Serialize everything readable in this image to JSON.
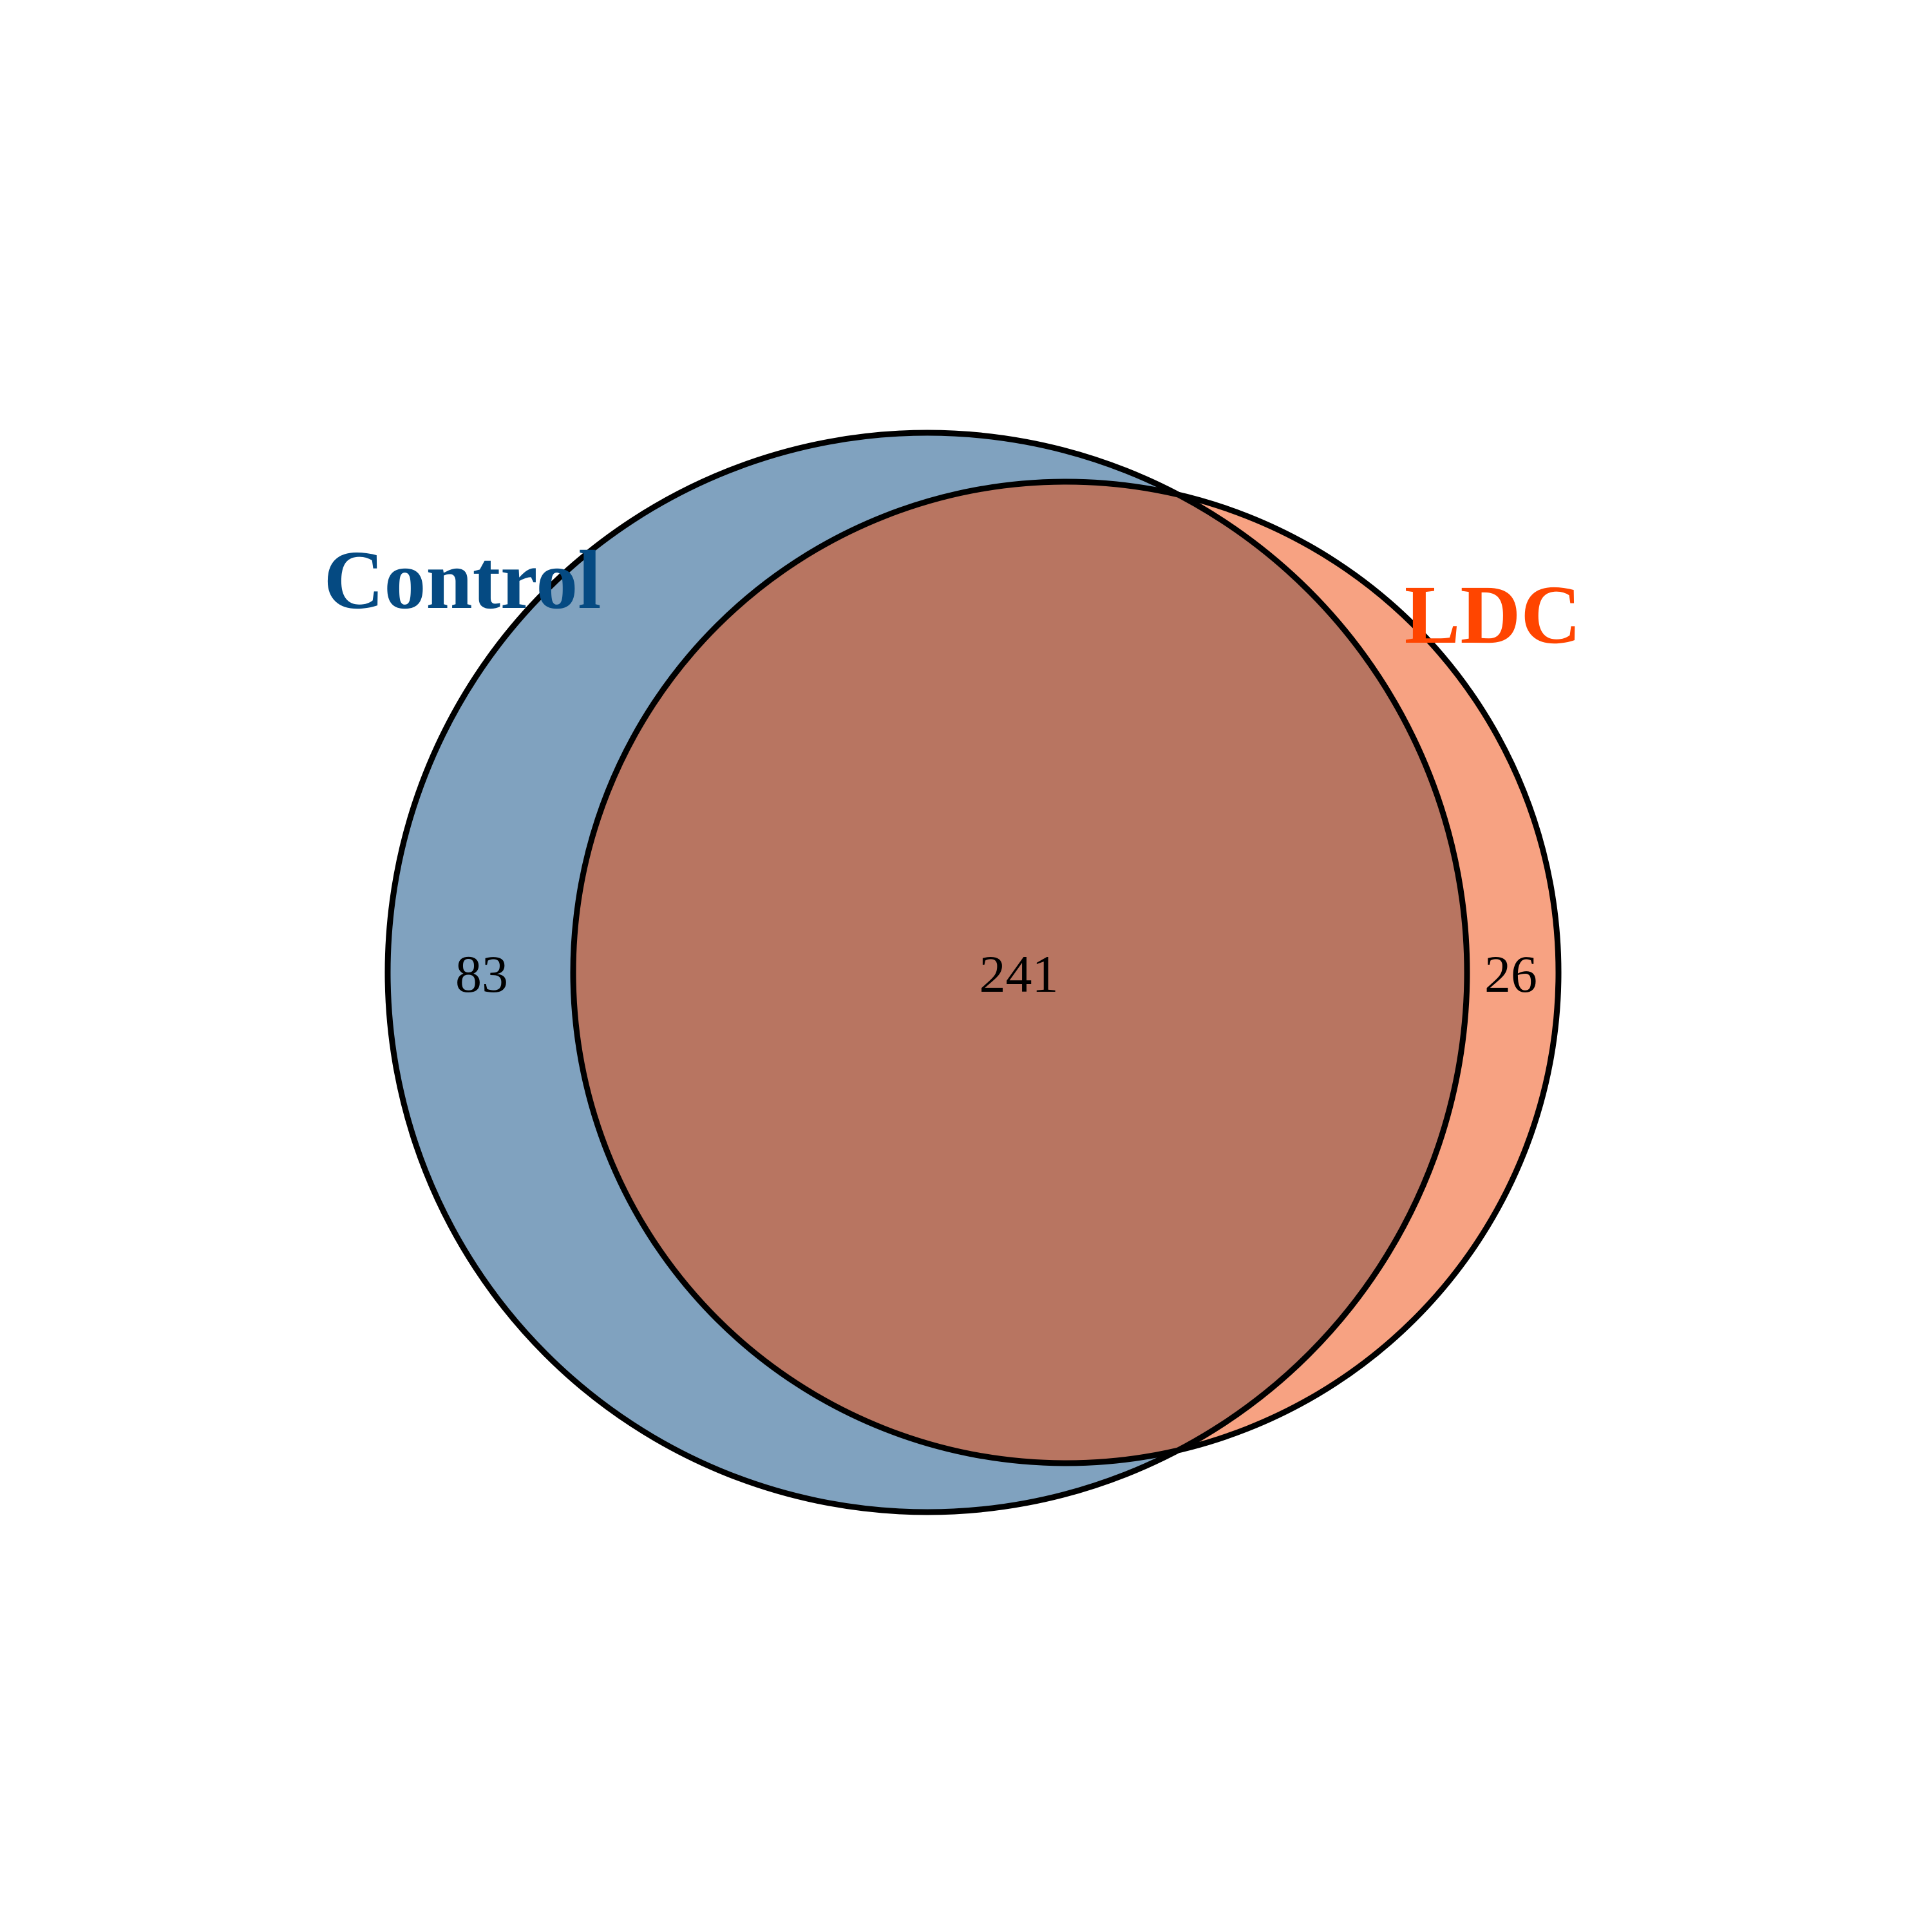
{
  "diagram": {
    "type": "venn",
    "sets": [
      {
        "name": "Control",
        "color": "#054a82",
        "fill": "#80a2bf"
      },
      {
        "name": "LDC",
        "color": "#ff4500",
        "fill": "#f7a282"
      }
    ],
    "overlap_fill": "#b87561",
    "outline_color": "#000000",
    "counts": {
      "control_only": "83",
      "both": "241",
      "ldc_only": "26"
    }
  }
}
